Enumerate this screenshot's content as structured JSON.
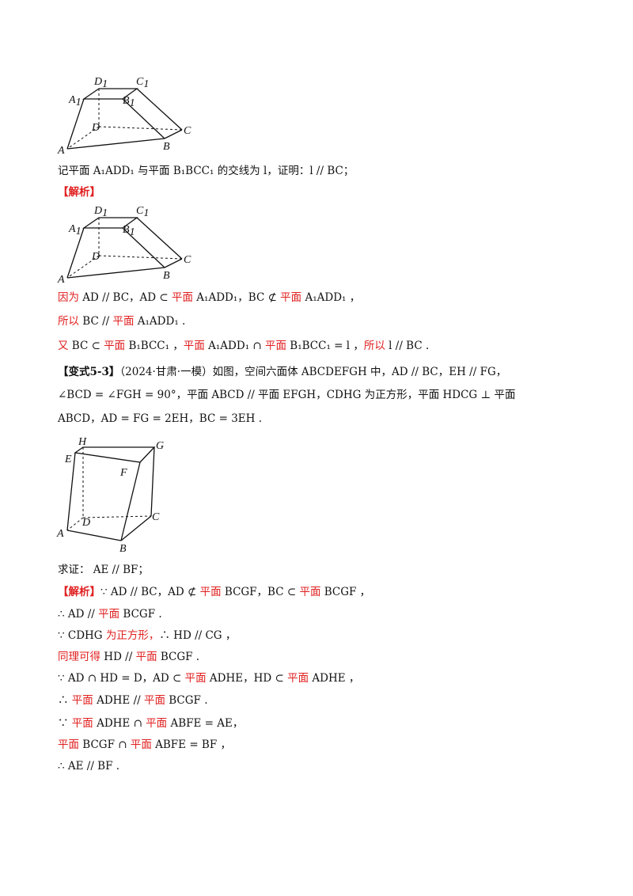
{
  "lines": {
    "l1": "记平面 A₁ADD₁ 与平面 B₁BCC₁ 的交线为 l，证明：l // BC；",
    "l2": "【解析】",
    "l3a": "因为",
    "l3b": " AD // BC，AD ⊂ ",
    "l3c": "平面",
    "l3d": " A₁ADD₁，BC ⊄ ",
    "l3e": "平面",
    "l3f": "  A₁ADD₁ ，",
    "l4a": "所以",
    "l4b": "  BC // ",
    "l4c": "平面",
    "l4d": "  A₁ADD₁ .",
    "l5a": "又",
    "l5b": "  BC ⊂ ",
    "l5c": "平面",
    "l5d": "  B₁BCC₁ ，",
    "l5e": "平面",
    "l5f": "  A₁ADD₁ ∩ ",
    "l5g": "平面",
    "l5h": " B₁BCC₁ = l ，",
    "l5i": "所以",
    "l5j": "  l // BC  .",
    "l6a": "【变式5-3】",
    "l6b": "（2024·甘肃·一模）如图，空间六面体 ABCDEFGH 中，AD // BC，EH // FG，",
    "l7": "∠BCD = ∠FGH = 90°，平面 ABCD // 平面 EFGH，CDHG 为正方形，平面 HDCG ⊥ 平面",
    "l8": "ABCD，AD = FG = 2EH，BC = 3EH .",
    "l9": "求证：  AE // BF；",
    "l10a": "【解析】",
    "l10b": "∵ AD // BC，AD ⊄ ",
    "l10c": "平面",
    "l10d": " BCGF，BC ⊂ ",
    "l10e": "平面",
    "l10f": " BCGF ，",
    "l11a": "∴ AD // ",
    "l11b": "平面",
    "l11c": " BCGF .",
    "l12a": "∵ CDHG ",
    "l12b": "为正方形，",
    "l12c": "∴ HD // CG ，",
    "l13a": "同理可得",
    "l13b": " HD // ",
    "l13c": "平面",
    "l13d": " BCGF .",
    "l14a": "∵ AD ∩ HD = D，AD ⊂ ",
    "l14b": "平面",
    "l14c": " ADHE，HD ⊂ ",
    "l14d": "平面",
    "l14e": " ADHE ，",
    "l15a": "∴ ",
    "l15b": "平面",
    "l15c": " ADHE // ",
    "l15d": "平面",
    "l15e": " BCGF .",
    "l16a": "∵ ",
    "l16b": "平面",
    "l16c": " ADHE ∩ ",
    "l16d": "平面",
    "l16e": " ABFE = AE，",
    "l17a": "平面",
    "l17b": " BCGF ∩ ",
    "l17c": "平面",
    "l17d": " ABFE = BF ，",
    "l18": "∴ AE // BF ."
  },
  "figures": {
    "frustum": {
      "A": "A",
      "B": "B",
      "C": "C",
      "D": "D",
      "A1": "A",
      "B1": "B",
      "C1": "C",
      "D1": "D",
      "sub": "1"
    },
    "hexa": {
      "A": "A",
      "B": "B",
      "C": "C",
      "D": "D",
      "E": "E",
      "F": "F",
      "G": "G",
      "H": "H"
    }
  },
  "colors": {
    "red": "#e02020",
    "text": "#111111"
  }
}
